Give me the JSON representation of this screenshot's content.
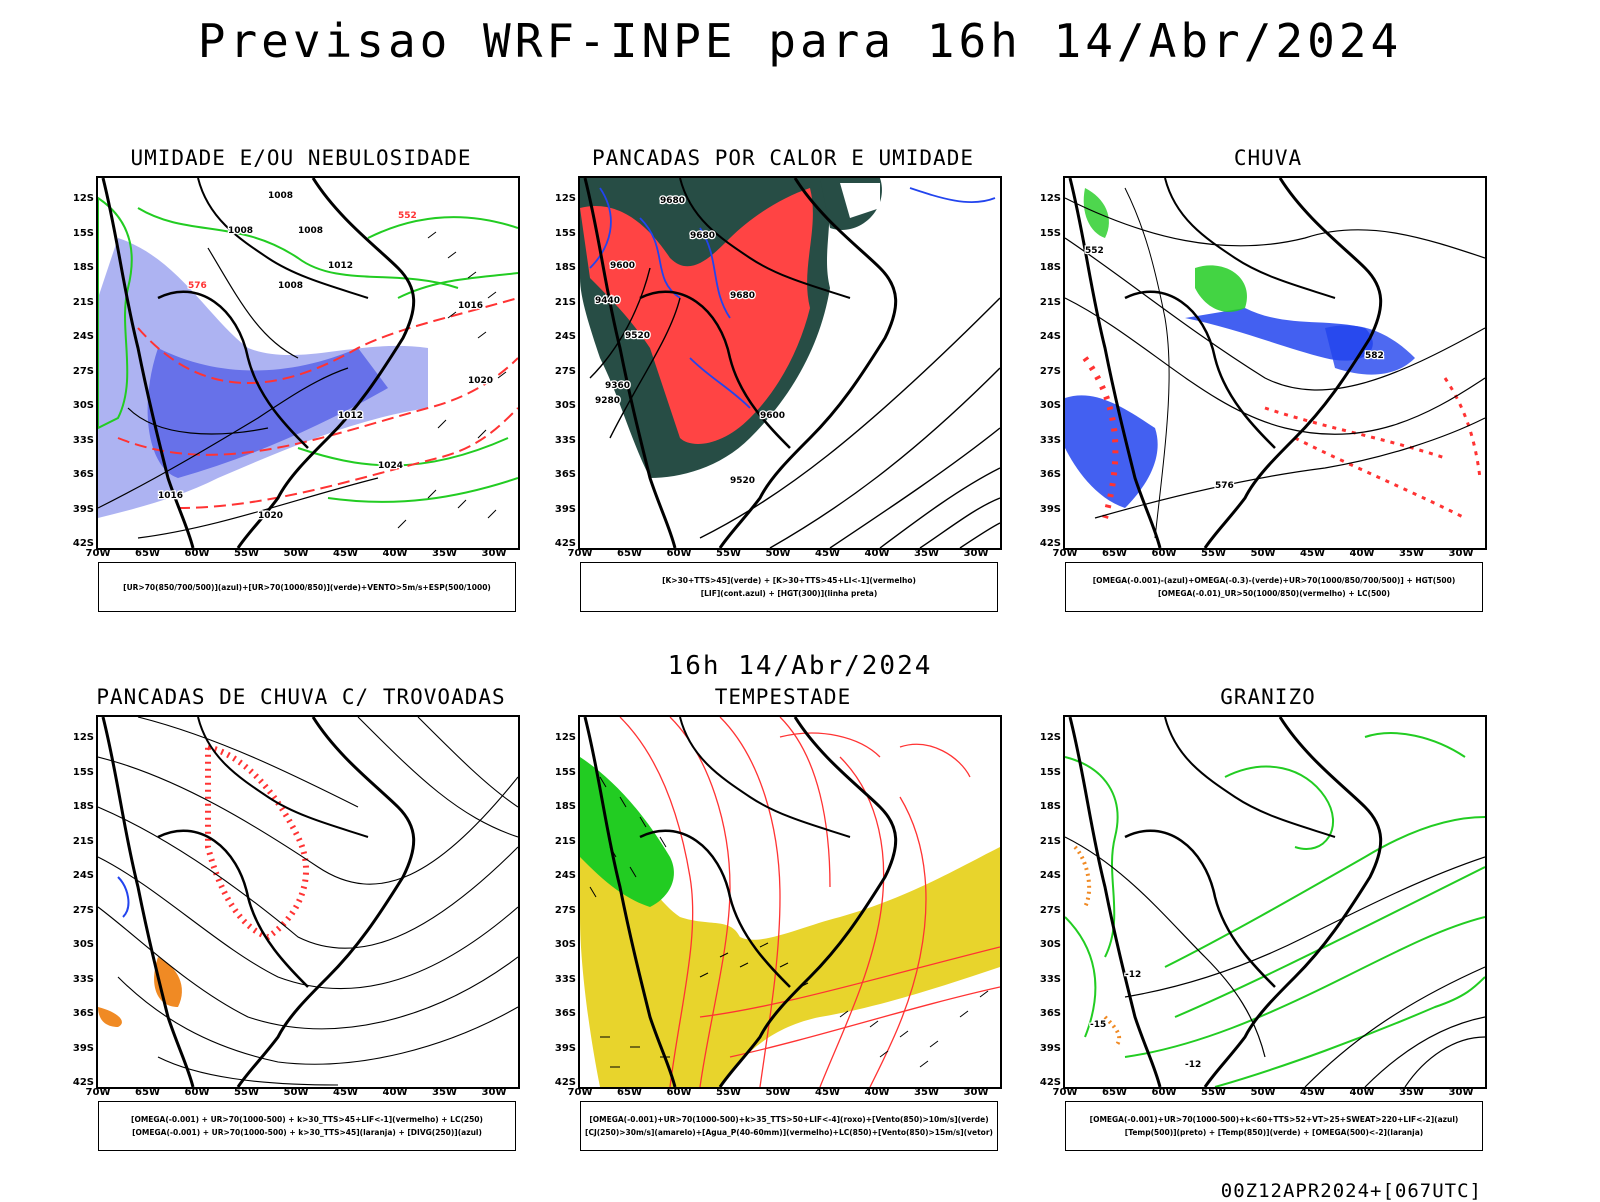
{
  "title": "Previsao WRF-INPE  para 16h 14/Abr/2024",
  "mid_date": "16h 14/Abr/2024",
  "footer": "00Z12APR2024+[067UTC]",
  "axes": {
    "lat_ticks": [
      "12S",
      "15S",
      "18S",
      "21S",
      "24S",
      "27S",
      "30S",
      "33S",
      "36S",
      "39S",
      "42S"
    ],
    "lon_ticks": [
      "70W",
      "65W",
      "60W",
      "55W",
      "50W",
      "45W",
      "40W",
      "35W",
      "30W"
    ]
  },
  "colors": {
    "green": "#22cc22",
    "red": "#ff3333",
    "blue": "#2244ee",
    "lavender": "#9fa6f0",
    "dark_teal": "#274d45",
    "yellow": "#e8d42c",
    "orange": "#f08a24",
    "black": "#000000"
  },
  "panels": [
    {
      "id": "umidade",
      "title": "UMIDADE E/OU NEBULOSIDADE",
      "legend": [
        "[UR>70(850/700/500)](azul)+[UR>70(1000/850)](verde)+VENTO>5m/s+ESP(500/1000)"
      ],
      "labels": [
        "1008",
        "1008",
        "1008",
        "1008",
        "1012",
        "1012",
        "1016",
        "1016",
        "1020",
        "1020",
        "1024",
        "576",
        "552"
      ]
    },
    {
      "id": "pancadas-calor",
      "title": "PANCADAS POR CALOR E UMIDADE",
      "legend": [
        "[K>30+TTS>45](verde) + [K>30+TTS>45+LI<-1](vermelho)",
        "[LIF](cont.azul) + [HGT(300)](linha preta)"
      ],
      "labels": [
        "9680",
        "9680",
        "9680",
        "9600",
        "9520",
        "9440",
        "9360",
        "9280",
        "9600",
        "9520"
      ]
    },
    {
      "id": "chuva",
      "title": "CHUVA",
      "legend": [
        "[OMEGA(-0.001)-(azul)+OMEGA(-0.3)-(verde)+UR>70(1000/850/700/500)] + HGT(500)",
        "[OMEGA(-0.01)_UR>50(1000/850)(vermelho) + LC(500)"
      ],
      "labels": [
        "552",
        "576",
        "582"
      ]
    },
    {
      "id": "trovoadas",
      "title": "PANCADAS DE CHUVA C/ TROVOADAS",
      "legend": [
        "[OMEGA(-0.001) + UR>70(1000-500) + k>30_TTS>45+LIF<-1](vermelho) + LC(250)",
        "[OMEGA(-0.001) + UR>70(1000-500) + k>30_TTS>45](laranja) + [DIVG(250)](azul)"
      ],
      "labels": []
    },
    {
      "id": "tempestade",
      "title": "TEMPESTADE",
      "legend": [
        "[OMEGA(-0.001)+UR>70(1000-500)+k>35_TTS>50+LIF<-4](roxo)+[Vento(850)>10m/s](verde)",
        "[CJ(250)>30m/s](amarelo)+[Agua_P(40-60mm)](vermelho)+LC(850)+[Vento(850)>15m/s](vetor)"
      ],
      "labels": []
    },
    {
      "id": "granizo",
      "title": "GRANIZO",
      "legend": [
        "[OMEGA(-0.001)+UR>70(1000-500)+k<60+TTS>52+VT>25+SWEAT>220+LIF<-2](azul)",
        "[Temp(500)](preto) + [Temp(850)](verde) + [OMEGA(500)<-2](laranja)"
      ],
      "labels": [
        "-12",
        "-12",
        "-15"
      ]
    }
  ]
}
